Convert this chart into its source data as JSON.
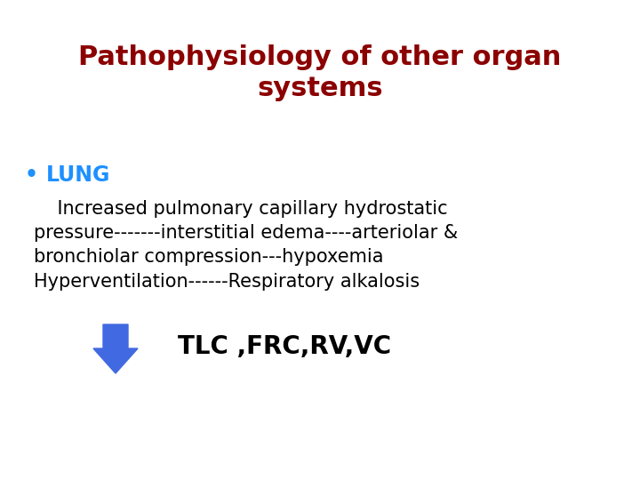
{
  "title_line1": "Pathophysiology of other organ",
  "title_line2": "systems",
  "title_color": "#8B0000",
  "title_fontsize": 22,
  "title_fontweight": "bold",
  "bullet_color": "#1E90FF",
  "bullet_fontsize": 17,
  "bullet_fontweight": "bold",
  "body_line1": "    Increased pulmonary capillary hydrostatic",
  "body_line2": "pressure-------interstitial edema----arteriolar &",
  "body_line3": "bronchiolar compression---hypoxemia",
  "body_line4": "Hyperventilation------Respiratory alkalosis",
  "arrow_label": "TLC ,FRC,RV,VC",
  "arrow_label_fontsize": 20,
  "arrow_label_fontweight": "bold",
  "arrow_color": "#4169E1",
  "body_fontsize": 15,
  "background_color": "#ffffff"
}
